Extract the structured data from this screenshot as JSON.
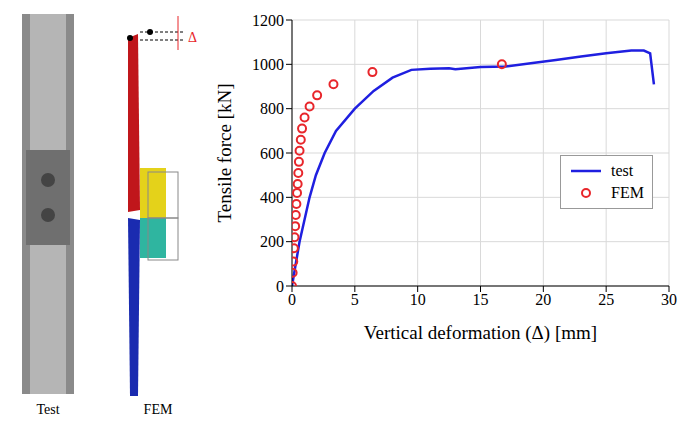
{
  "chart_data": {
    "type": "line",
    "x_label": "Vertical deformation (Δ) [mm]",
    "y_label": "Tensile force [kN]",
    "xlim": [
      0,
      30
    ],
    "xticks": [
      0,
      5,
      10,
      15,
      20,
      25,
      30
    ],
    "ylim": [
      0,
      1200
    ],
    "yticks": [
      0,
      200,
      400,
      600,
      800,
      1000,
      1200
    ],
    "grid": true,
    "legend": "right",
    "series": [
      {
        "name": "test",
        "type": "line",
        "color": "#1f1fe0",
        "line_style": "solid",
        "x": [
          0,
          0.3,
          0.6,
          1,
          1.4,
          1.9,
          2.6,
          3.5,
          5,
          6.5,
          8,
          9.5,
          11,
          12.5,
          13,
          15,
          17,
          19,
          21,
          23,
          25,
          27,
          28,
          28.5,
          28.8
        ],
        "values": [
          0,
          100,
          200,
          300,
          400,
          500,
          600,
          700,
          800,
          880,
          940,
          975,
          980,
          982,
          978,
          988,
          990,
          1005,
          1020,
          1035,
          1050,
          1062,
          1062,
          1050,
          910
        ]
      },
      {
        "name": "FEM",
        "type": "scatter",
        "color": "#e8262b",
        "marker": "open_circle",
        "x": [
          0,
          0.05,
          0.1,
          0.15,
          0.2,
          0.25,
          0.3,
          0.35,
          0.4,
          0.45,
          0.5,
          0.55,
          0.6,
          0.7,
          0.8,
          1,
          1.4,
          2,
          3.3,
          6.4,
          16.7
        ],
        "values": [
          0,
          60,
          110,
          170,
          220,
          270,
          320,
          370,
          420,
          460,
          510,
          560,
          610,
          660,
          710,
          760,
          810,
          860,
          910,
          965,
          1000
        ]
      }
    ]
  },
  "panels": {
    "test_label": "Test",
    "fem_label": "FEM",
    "delta_label": "Δ"
  }
}
